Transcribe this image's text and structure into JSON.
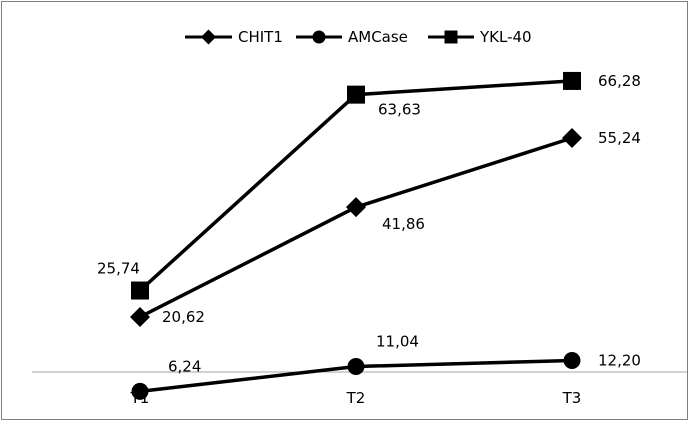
{
  "chart_data": {
    "type": "line",
    "categories": [
      "T1",
      "T2",
      "T3"
    ],
    "series": [
      {
        "name": "CHIT1",
        "marker": "diamond",
        "values": [
          20.62,
          41.86,
          55.24
        ],
        "labels": [
          "20,62",
          "41,86",
          "55,24"
        ]
      },
      {
        "name": "AMCase",
        "marker": "circle",
        "values": [
          6.24,
          11.04,
          12.2
        ],
        "labels": [
          "6,24",
          "11,04",
          "12,20"
        ]
      },
      {
        "name": "YKL-40",
        "marker": "square",
        "values": [
          25.74,
          63.63,
          66.28
        ],
        "labels": [
          "25,74",
          "63,63",
          "66,28"
        ]
      }
    ],
    "ylim": [
      0,
      80
    ],
    "legend_position": "top",
    "grid": false,
    "colors": {
      "line": "#000000",
      "axis": "#a6a6a6",
      "border": "#7f7f7f"
    }
  }
}
